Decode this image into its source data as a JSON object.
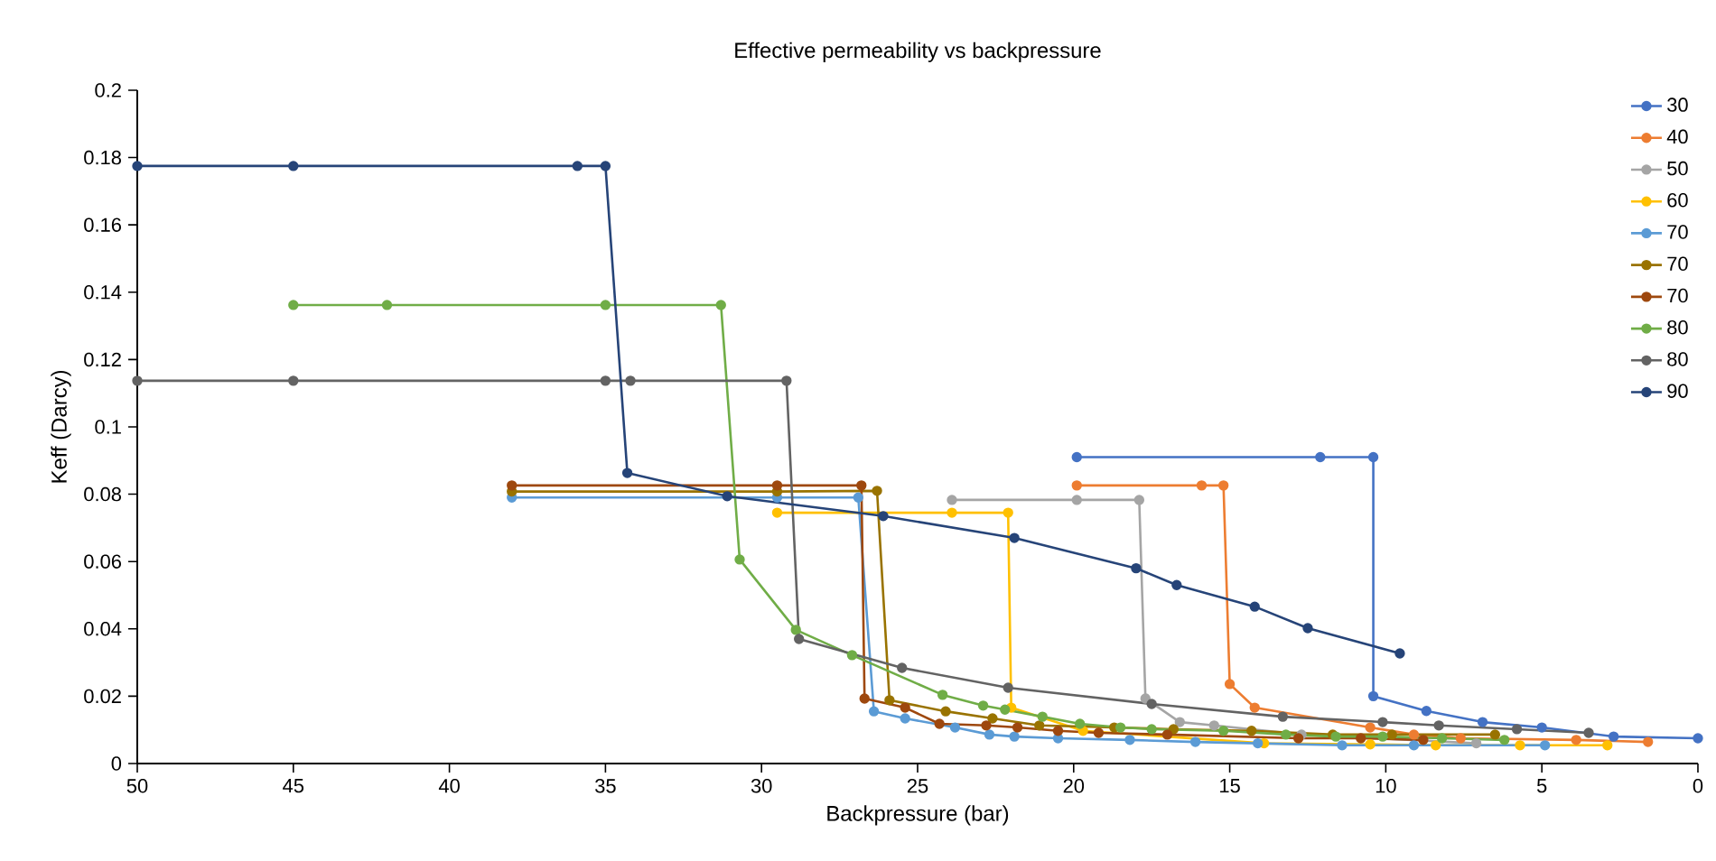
{
  "chart_data": {
    "type": "line",
    "title": "Effective permeability vs backpressure",
    "xlabel": "Backpressure (bar)",
    "ylabel": "Keff (Darcy)",
    "xlim": [
      50,
      0
    ],
    "xticks": [
      50,
      45,
      40,
      35,
      30,
      25,
      20,
      15,
      10,
      5,
      0
    ],
    "ylim": [
      0,
      0.2
    ],
    "yticks": [
      0,
      0.02,
      0.04,
      0.06,
      0.08,
      0.1,
      0.12,
      0.14,
      0.16,
      0.18,
      0.2
    ],
    "grid": false,
    "legend": "top right",
    "marker": "circle",
    "line_style": "solid",
    "series": [
      {
        "name": "30",
        "color": "#4472c4",
        "x": [
          19.9,
          12.1,
          10.4,
          10.4,
          8.7,
          6.9,
          5.0,
          2.7,
          0
        ],
        "values": [
          0.091,
          0.091,
          0.091,
          0.02,
          0.0156,
          0.0123,
          0.0107,
          0.008,
          0.0075
        ]
      },
      {
        "name": "40",
        "color": "#ed7d31",
        "x": [
          19.9,
          15.9,
          15.2,
          15.0,
          14.2,
          10.5,
          9.1,
          7.6,
          3.9,
          1.6
        ],
        "values": [
          0.0826,
          0.0826,
          0.0826,
          0.0236,
          0.0166,
          0.0107,
          0.0086,
          0.0075,
          0.007,
          0.0064
        ]
      },
      {
        "name": "50",
        "color": "#a5a5a5",
        "x": [
          23.9,
          19.9,
          17.9,
          17.7,
          16.6,
          15.5,
          12.7,
          7.1
        ],
        "values": [
          0.0783,
          0.0783,
          0.0783,
          0.0193,
          0.0123,
          0.0113,
          0.0086,
          0.006
        ]
      },
      {
        "name": "60",
        "color": "#ffc000",
        "x": [
          29.5,
          23.9,
          22.1,
          22.0,
          19.7,
          13.9,
          10.5,
          8.4,
          5.7,
          2.9
        ],
        "values": [
          0.0745,
          0.0745,
          0.0745,
          0.0166,
          0.0097,
          0.006,
          0.0057,
          0.0054,
          0.0054,
          0.0054
        ]
      },
      {
        "name": "70",
        "color": "#5b9bd5",
        "x": [
          38.0,
          29.5,
          26.9,
          26.4,
          25.4,
          23.8,
          22.7,
          21.9,
          20.5,
          18.2,
          16.1,
          14.1,
          11.4,
          9.1,
          4.9
        ],
        "values": [
          0.079,
          0.079,
          0.079,
          0.0155,
          0.0134,
          0.0107,
          0.0086,
          0.008,
          0.0075,
          0.007,
          0.0064,
          0.006,
          0.0054,
          0.0054,
          0.0054
        ]
      },
      {
        "name": "70",
        "color": "#997300",
        "x": [
          38.0,
          29.5,
          26.3,
          25.9,
          24.1,
          22.6,
          21.1,
          18.7,
          16.8,
          14.3,
          11.7,
          9.8,
          6.5
        ],
        "values": [
          0.0808,
          0.0808,
          0.081,
          0.0188,
          0.0155,
          0.0134,
          0.0113,
          0.0107,
          0.0102,
          0.0097,
          0.0086,
          0.0086,
          0.0086
        ]
      },
      {
        "name": "70",
        "color": "#9e480e",
        "x": [
          38.0,
          29.5,
          26.8,
          26.7,
          25.4,
          24.3,
          22.8,
          21.8,
          20.5,
          19.2,
          17.0,
          12.8,
          10.8,
          8.8
        ],
        "values": [
          0.0826,
          0.0826,
          0.0826,
          0.0193,
          0.0166,
          0.0118,
          0.0113,
          0.0107,
          0.0097,
          0.0091,
          0.0086,
          0.0075,
          0.0075,
          0.007
        ]
      },
      {
        "name": "80",
        "color": "#70ad47",
        "x": [
          45.0,
          42.0,
          35.0,
          31.3,
          30.7,
          28.9,
          27.1,
          24.2,
          22.9,
          22.2,
          21.0,
          19.8,
          18.5,
          17.5,
          15.2,
          13.2,
          11.6,
          10.1,
          8.2,
          6.2
        ],
        "values": [
          0.1362,
          0.1362,
          0.1362,
          0.1362,
          0.0606,
          0.0397,
          0.0322,
          0.0204,
          0.0172,
          0.016,
          0.0139,
          0.0118,
          0.0107,
          0.0102,
          0.0097,
          0.0086,
          0.008,
          0.008,
          0.0075,
          0.007
        ]
      },
      {
        "name": "80",
        "color": "#636363",
        "x": [
          50.0,
          45.0,
          35.0,
          34.2,
          29.2,
          28.8,
          25.5,
          22.1,
          17.5,
          13.3,
          10.1,
          8.3,
          5.8,
          3.5
        ],
        "values": [
          0.1137,
          0.1137,
          0.1137,
          0.1137,
          0.1137,
          0.037,
          0.0284,
          0.0225,
          0.0177,
          0.0139,
          0.0123,
          0.0113,
          0.0102,
          0.0091
        ]
      },
      {
        "name": "90",
        "color": "#264478",
        "x": [
          50.0,
          45.0,
          35.9,
          35.0,
          34.3,
          31.1,
          26.1,
          21.9,
          18.0,
          16.7,
          14.2,
          12.5,
          9.55
        ],
        "values": [
          0.1775,
          0.1775,
          0.1775,
          0.1775,
          0.0863,
          0.0794,
          0.0735,
          0.067,
          0.058,
          0.053,
          0.0466,
          0.0402,
          0.0327
        ]
      }
    ]
  }
}
